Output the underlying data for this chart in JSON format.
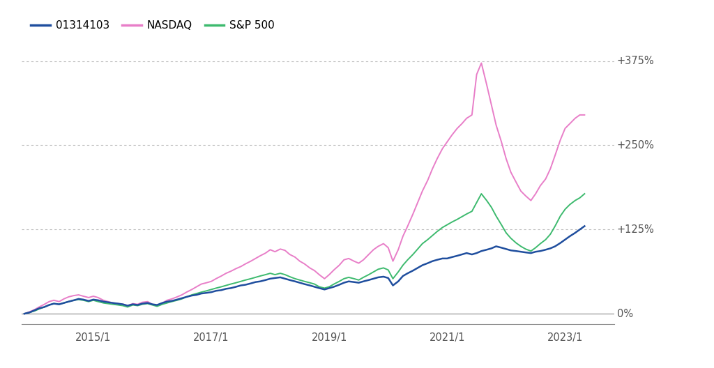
{
  "legend_labels": [
    "01314103",
    "NASDAQ",
    "S&P 500"
  ],
  "legend_colors": [
    "#1f4e9e",
    "#e87ec8",
    "#3dba6e"
  ],
  "x_tick_labels": [
    "2015/1",
    "2017/1",
    "2019/1",
    "2021/1",
    "2023/1"
  ],
  "y_tick_labels": [
    "0%",
    "+125%",
    "+250%",
    "+375%"
  ],
  "y_tick_values": [
    0,
    125,
    250,
    375
  ],
  "background_color": "#ffffff",
  "start_year": 2013.83,
  "end_year": 2023.33,
  "fund_x": [
    2013.83,
    2013.92,
    2014.0,
    2014.08,
    2014.17,
    2014.25,
    2014.33,
    2014.42,
    2014.5,
    2014.58,
    2014.67,
    2014.75,
    2014.83,
    2014.92,
    2015.0,
    2015.08,
    2015.17,
    2015.25,
    2015.33,
    2015.42,
    2015.5,
    2015.58,
    2015.67,
    2015.75,
    2015.83,
    2015.92,
    2016.0,
    2016.08,
    2016.17,
    2016.25,
    2016.33,
    2016.42,
    2016.5,
    2016.58,
    2016.67,
    2016.75,
    2016.83,
    2016.92,
    2017.0,
    2017.08,
    2017.17,
    2017.25,
    2017.33,
    2017.42,
    2017.5,
    2017.58,
    2017.67,
    2017.75,
    2017.83,
    2017.92,
    2018.0,
    2018.08,
    2018.17,
    2018.25,
    2018.33,
    2018.42,
    2018.5,
    2018.58,
    2018.67,
    2018.75,
    2018.83,
    2018.92,
    2019.0,
    2019.08,
    2019.17,
    2019.25,
    2019.33,
    2019.42,
    2019.5,
    2019.58,
    2019.67,
    2019.75,
    2019.83,
    2019.92,
    2020.0,
    2020.08,
    2020.17,
    2020.25,
    2020.33,
    2020.42,
    2020.5,
    2020.58,
    2020.67,
    2020.75,
    2020.83,
    2020.92,
    2021.0,
    2021.08,
    2021.17,
    2021.25,
    2021.33,
    2021.42,
    2021.5,
    2021.58,
    2021.67,
    2021.75,
    2021.83,
    2021.92,
    2022.0,
    2022.08,
    2022.17,
    2022.25,
    2022.33,
    2022.42,
    2022.5,
    2022.58,
    2022.67,
    2022.75,
    2022.83,
    2022.92,
    2023.0,
    2023.08,
    2023.17,
    2023.25,
    2023.33
  ],
  "fund_y": [
    0,
    2,
    5,
    8,
    10,
    13,
    15,
    14,
    16,
    18,
    20,
    22,
    21,
    19,
    21,
    20,
    18,
    17,
    16,
    15,
    14,
    12,
    14,
    13,
    15,
    16,
    14,
    13,
    16,
    18,
    19,
    21,
    23,
    25,
    27,
    28,
    30,
    31,
    32,
    34,
    35,
    37,
    38,
    40,
    42,
    43,
    45,
    47,
    48,
    50,
    52,
    53,
    54,
    52,
    50,
    48,
    46,
    44,
    42,
    40,
    38,
    36,
    38,
    40,
    43,
    46,
    48,
    47,
    46,
    48,
    50,
    52,
    54,
    55,
    53,
    42,
    48,
    56,
    60,
    64,
    68,
    72,
    75,
    78,
    80,
    82,
    82,
    84,
    86,
    88,
    90,
    88,
    90,
    93,
    95,
    97,
    100,
    98,
    96,
    94,
    93,
    92,
    91,
    90,
    92,
    93,
    95,
    97,
    100,
    105,
    110,
    115,
    120,
    125,
    130
  ],
  "nasdaq_x": [
    2013.83,
    2013.92,
    2014.0,
    2014.08,
    2014.17,
    2014.25,
    2014.33,
    2014.42,
    2014.5,
    2014.58,
    2014.67,
    2014.75,
    2014.83,
    2014.92,
    2015.0,
    2015.08,
    2015.17,
    2015.25,
    2015.33,
    2015.42,
    2015.5,
    2015.58,
    2015.67,
    2015.75,
    2015.83,
    2015.92,
    2016.0,
    2016.08,
    2016.17,
    2016.25,
    2016.33,
    2016.42,
    2016.5,
    2016.58,
    2016.67,
    2016.75,
    2016.83,
    2016.92,
    2017.0,
    2017.08,
    2017.17,
    2017.25,
    2017.33,
    2017.42,
    2017.5,
    2017.58,
    2017.67,
    2017.75,
    2017.83,
    2017.92,
    2018.0,
    2018.08,
    2018.17,
    2018.25,
    2018.33,
    2018.42,
    2018.5,
    2018.58,
    2018.67,
    2018.75,
    2018.83,
    2018.92,
    2019.0,
    2019.08,
    2019.17,
    2019.25,
    2019.33,
    2019.42,
    2019.5,
    2019.58,
    2019.67,
    2019.75,
    2019.83,
    2019.92,
    2020.0,
    2020.08,
    2020.17,
    2020.25,
    2020.33,
    2020.42,
    2020.5,
    2020.58,
    2020.67,
    2020.75,
    2020.83,
    2020.92,
    2021.0,
    2021.08,
    2021.17,
    2021.25,
    2021.33,
    2021.42,
    2021.5,
    2021.58,
    2021.67,
    2021.75,
    2021.83,
    2021.92,
    2022.0,
    2022.08,
    2022.17,
    2022.25,
    2022.33,
    2022.42,
    2022.5,
    2022.58,
    2022.67,
    2022.75,
    2022.83,
    2022.92,
    2023.0,
    2023.08,
    2023.17,
    2023.25,
    2023.33
  ],
  "nasdaq_y": [
    0,
    3,
    6,
    10,
    14,
    18,
    20,
    18,
    22,
    25,
    27,
    28,
    26,
    24,
    26,
    24,
    20,
    18,
    16,
    15,
    14,
    12,
    15,
    14,
    17,
    18,
    14,
    12,
    16,
    20,
    22,
    25,
    28,
    32,
    36,
    40,
    44,
    46,
    48,
    52,
    56,
    60,
    63,
    67,
    70,
    74,
    78,
    82,
    86,
    90,
    95,
    92,
    96,
    94,
    88,
    84,
    78,
    74,
    68,
    64,
    58,
    52,
    58,
    65,
    72,
    80,
    82,
    78,
    75,
    80,
    88,
    95,
    100,
    104,
    98,
    78,
    95,
    115,
    130,
    148,
    165,
    182,
    198,
    215,
    230,
    245,
    255,
    265,
    275,
    282,
    290,
    295,
    355,
    372,
    340,
    310,
    280,
    255,
    230,
    210,
    195,
    182,
    175,
    168,
    178,
    190,
    200,
    215,
    235,
    258,
    275,
    282,
    290,
    295,
    295
  ],
  "sp500_x": [
    2013.83,
    2013.92,
    2014.0,
    2014.08,
    2014.17,
    2014.25,
    2014.33,
    2014.42,
    2014.5,
    2014.58,
    2014.67,
    2014.75,
    2014.83,
    2014.92,
    2015.0,
    2015.08,
    2015.17,
    2015.25,
    2015.33,
    2015.42,
    2015.5,
    2015.58,
    2015.67,
    2015.75,
    2015.83,
    2015.92,
    2016.0,
    2016.08,
    2016.17,
    2016.25,
    2016.33,
    2016.42,
    2016.5,
    2016.58,
    2016.67,
    2016.75,
    2016.83,
    2016.92,
    2017.0,
    2017.08,
    2017.17,
    2017.25,
    2017.33,
    2017.42,
    2017.5,
    2017.58,
    2017.67,
    2017.75,
    2017.83,
    2017.92,
    2018.0,
    2018.08,
    2018.17,
    2018.25,
    2018.33,
    2018.42,
    2018.5,
    2018.58,
    2018.67,
    2018.75,
    2018.83,
    2018.92,
    2019.0,
    2019.08,
    2019.17,
    2019.25,
    2019.33,
    2019.42,
    2019.5,
    2019.58,
    2019.67,
    2019.75,
    2019.83,
    2019.92,
    2020.0,
    2020.08,
    2020.17,
    2020.25,
    2020.33,
    2020.42,
    2020.5,
    2020.58,
    2020.67,
    2020.75,
    2020.83,
    2020.92,
    2021.0,
    2021.08,
    2021.17,
    2021.25,
    2021.33,
    2021.42,
    2021.5,
    2021.58,
    2021.67,
    2021.75,
    2021.83,
    2021.92,
    2022.0,
    2022.08,
    2022.17,
    2022.25,
    2022.33,
    2022.42,
    2022.5,
    2022.58,
    2022.67,
    2022.75,
    2022.83,
    2022.92,
    2023.0,
    2023.08,
    2023.17,
    2023.25,
    2023.33
  ],
  "sp500_y": [
    0,
    2,
    4,
    7,
    10,
    13,
    15,
    14,
    16,
    18,
    20,
    21,
    20,
    18,
    20,
    18,
    16,
    15,
    14,
    13,
    12,
    10,
    13,
    12,
    14,
    15,
    13,
    11,
    14,
    16,
    18,
    20,
    22,
    25,
    28,
    30,
    32,
    34,
    36,
    38,
    40,
    42,
    44,
    46,
    48,
    50,
    52,
    54,
    56,
    58,
    60,
    58,
    60,
    58,
    55,
    52,
    50,
    48,
    46,
    44,
    40,
    38,
    40,
    44,
    48,
    52,
    54,
    52,
    50,
    54,
    58,
    62,
    66,
    68,
    65,
    52,
    62,
    72,
    80,
    88,
    96,
    104,
    110,
    116,
    122,
    128,
    132,
    136,
    140,
    144,
    148,
    152,
    165,
    178,
    168,
    158,
    145,
    132,
    120,
    112,
    105,
    100,
    96,
    93,
    98,
    104,
    110,
    118,
    130,
    145,
    155,
    162,
    168,
    172,
    178
  ]
}
